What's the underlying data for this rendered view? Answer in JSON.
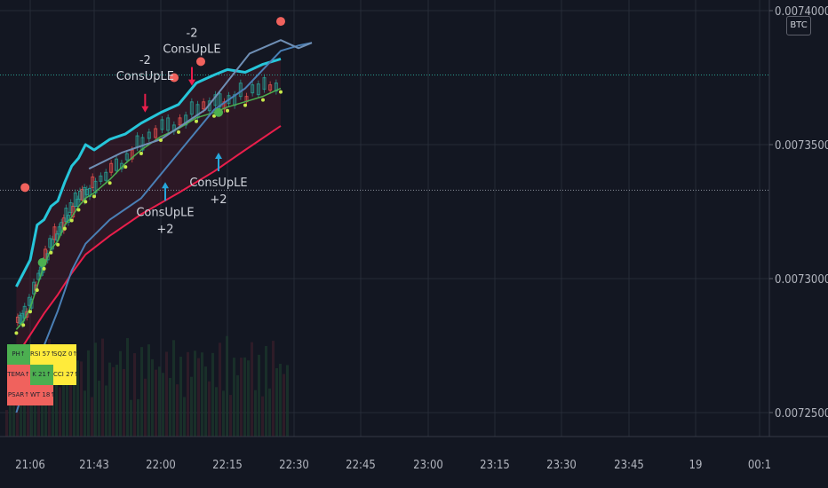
{
  "symbol_badge": "BTC",
  "colors": {
    "background": "#131722",
    "grid": "#262b37",
    "cyan": "#26c6da",
    "crimson": "#e91e4b",
    "green": "#4caf50",
    "yellow_green": "#c6e84a",
    "steel_blue": "#4a7fb5",
    "orange": "#ffa726",
    "salmon": "#f0625d"
  },
  "chart_data": {
    "type": "line",
    "title": "",
    "xlabel": "",
    "ylabel": "",
    "x_ticks": [
      "21:06",
      "21:43",
      "22:00",
      "22:15",
      "22:30",
      "22:45",
      "23:00",
      "23:15",
      "23:30",
      "23:45",
      "19",
      "00:1"
    ],
    "y_ticks": [
      "0.00740000",
      "0.00735000",
      "0.00730000",
      "0.00725000"
    ],
    "ylim": [
      0.00724,
      0.0074
    ],
    "horizontal_levels": [
      0.007376,
      0.007333
    ],
    "series": [
      {
        "id": "upper_band",
        "color": "#26c6da",
        "x": [
          "20:58",
          "21:02",
          "21:06",
          "21:10",
          "21:14",
          "21:18",
          "21:22",
          "21:26",
          "21:30",
          "21:34",
          "21:38",
          "21:43",
          "21:47",
          "21:51",
          "21:55",
          "22:00",
          "22:04",
          "22:08",
          "22:12",
          "22:15",
          "22:19",
          "22:23",
          "22:27"
        ],
        "values": [
          0.007297,
          0.007302,
          0.007307,
          0.00732,
          0.007322,
          0.007327,
          0.007329,
          0.007336,
          0.007342,
          0.007345,
          0.00735,
          0.007348,
          0.007352,
          0.007354,
          0.007358,
          0.007362,
          0.007365,
          0.007373,
          0.007376,
          0.007378,
          0.007377,
          0.00738,
          0.007382
        ]
      },
      {
        "id": "ema_fast",
        "color": "#4caf50",
        "x": [
          "20:58",
          "21:02",
          "21:06",
          "21:10",
          "21:14",
          "21:18",
          "21:22",
          "21:26",
          "21:30",
          "21:34",
          "21:38",
          "21:43",
          "21:47",
          "21:51",
          "21:55",
          "22:00",
          "22:04",
          "22:08",
          "22:12",
          "22:15",
          "22:19",
          "22:23",
          "22:27"
        ],
        "values": [
          0.007281,
          0.007284,
          0.007289,
          0.007297,
          0.007305,
          0.007311,
          0.007314,
          0.00732,
          0.007323,
          0.007327,
          0.00733,
          0.007332,
          0.007337,
          0.007343,
          0.007348,
          0.007353,
          0.007356,
          0.00736,
          0.007362,
          0.007364,
          0.007366,
          0.007368,
          0.007371
        ]
      },
      {
        "id": "ema_slow",
        "color": "#e91e4b",
        "x": [
          "20:58",
          "21:06",
          "21:14",
          "21:22",
          "21:30",
          "21:38",
          "21:47",
          "21:55",
          "22:04",
          "22:12",
          "22:19",
          "22:27"
        ],
        "values": [
          0.007271,
          0.007279,
          0.007287,
          0.007294,
          0.007302,
          0.007309,
          0.007316,
          0.007324,
          0.007332,
          0.00734,
          0.007348,
          0.007357
        ]
      },
      {
        "id": "lower_band",
        "color": "#4a7fb5",
        "x": [
          "20:58",
          "21:06",
          "21:14",
          "21:22",
          "21:30",
          "21:38",
          "21:47",
          "21:55",
          "22:04",
          "22:12",
          "22:19",
          "22:27",
          "22:31",
          "22:34"
        ],
        "values": [
          0.00725,
          0.007266,
          0.007275,
          0.007288,
          0.007303,
          0.007313,
          0.007322,
          0.00733,
          0.007347,
          0.007363,
          0.007371,
          0.007385,
          0.007387,
          0.007388
        ]
      },
      {
        "id": "lagging_line",
        "color": "#6f8fb5",
        "x": [
          "21:40",
          "21:50",
          "22:00",
          "22:10",
          "22:20",
          "22:27",
          "22:31",
          "22:34"
        ],
        "values": [
          0.007341,
          0.007347,
          0.007352,
          0.007363,
          0.007384,
          0.007389,
          0.007386,
          0.007388
        ]
      }
    ],
    "annotations": [
      {
        "line1": "-2",
        "line2": "ConsUpLE",
        "x": "21:56",
        "position": "above",
        "value": 0.007361,
        "color": "#e91e4b"
      },
      {
        "line1": "-2",
        "line2": "ConsUpLE",
        "x": "22:07",
        "position": "above",
        "value": 0.007371,
        "color": "#e91e4b"
      },
      {
        "line1": "ConsUpLE",
        "line2": "+2",
        "x": "22:01",
        "position": "below",
        "value": 0.007337,
        "color": "#26a6da"
      },
      {
        "line1": "ConsUpLE",
        "line2": "+2",
        "x": "22:13",
        "position": "below",
        "value": 0.007348,
        "color": "#26a6da"
      }
    ]
  },
  "dashboard": {
    "rows": [
      [
        {
          "text": "PH↑",
          "color": "#4caf50"
        },
        {
          "text": "RSI 57↑",
          "color": "#ffeb3b"
        },
        {
          "text": "SQZ 0↑",
          "color": "#ffeb3b"
        }
      ],
      [
        {
          "text": "TEMA↑",
          "color": "#f0625d"
        },
        {
          "text": "K 21↑",
          "color": "#4caf50"
        },
        {
          "text": "CCI 27↑",
          "color": "#ffeb3b"
        }
      ],
      [
        {
          "text": "PSAR↑",
          "color": "#f0625d"
        },
        {
          "text": "WT 18↑",
          "color": "#f0625d"
        }
      ]
    ]
  }
}
